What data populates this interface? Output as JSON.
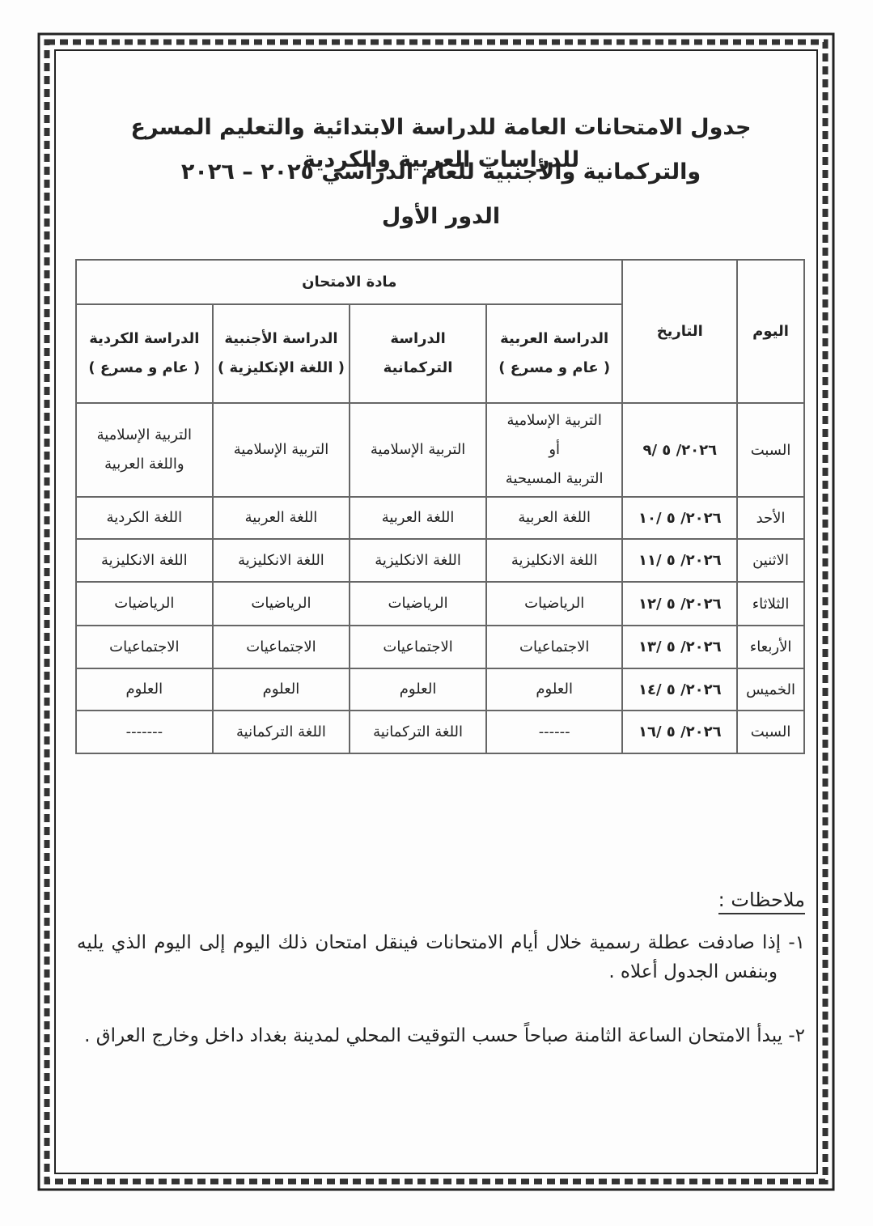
{
  "header": {
    "title_lines": [
      "جدول الامتحانات العامة للدراسة الابتدائية والتعليم المسرع للدراسات العربية والكردية",
      "والتركمانية والأجنبية للعام الدراسي ٢٠٢٥ – ٢٠٢٦",
      "الدور الأول"
    ]
  },
  "table": {
    "day_header": "اليوم",
    "date_header": "التاريخ",
    "subject_header": "مادة الامتحان",
    "columns": [
      [
        "الدراسة العربية",
        "( عام و مسرع )"
      ],
      [
        "الدراسة التركمانية"
      ],
      [
        "الدراسة الأجنبية",
        "( اللغة الإنكليزية )"
      ],
      [
        "الدراسة الكردية",
        "( عام و مسرع )"
      ]
    ],
    "rows": [
      {
        "day": "السبت",
        "date": "٢٠٢٦/ ٥ /٩",
        "cells": [
          [
            "التربية الإسلامية",
            "أو",
            "التربية المسيحية"
          ],
          [
            "التربية الإسلامية"
          ],
          [
            "التربية الإسلامية"
          ],
          [
            "التربية الإسلامية",
            "واللغة العربية"
          ]
        ]
      },
      {
        "day": "الأحد",
        "date": "٢٠٢٦/ ٥ /١٠",
        "cells": [
          [
            "اللغة العربية"
          ],
          [
            "اللغة العربية"
          ],
          [
            "اللغة العربية"
          ],
          [
            "اللغة الكردية"
          ]
        ]
      },
      {
        "day": "الاثنين",
        "date": "٢٠٢٦/ ٥ /١١",
        "cells": [
          [
            "اللغة الانكليزية"
          ],
          [
            "اللغة الانكليزية"
          ],
          [
            "اللغة الانكليزية"
          ],
          [
            "اللغة الانكليزية"
          ]
        ]
      },
      {
        "day": "الثلاثاء",
        "date": "٢٠٢٦/ ٥ /١٢",
        "cells": [
          [
            "الرياضيات"
          ],
          [
            "الرياضيات"
          ],
          [
            "الرياضيات"
          ],
          [
            "الرياضيات"
          ]
        ]
      },
      {
        "day": "الأربعاء",
        "date": "٢٠٢٦/ ٥ /١٣",
        "cells": [
          [
            "الاجتماعيات"
          ],
          [
            "الاجتماعيات"
          ],
          [
            "الاجتماعيات"
          ],
          [
            "الاجتماعيات"
          ]
        ]
      },
      {
        "day": "الخميس",
        "date": "٢٠٢٦/ ٥ /١٤",
        "cells": [
          [
            "العلوم"
          ],
          [
            "العلوم"
          ],
          [
            "العلوم"
          ],
          [
            "العلوم"
          ]
        ]
      },
      {
        "day": "السبت",
        "date": "٢٠٢٦/ ٥ /١٦",
        "cells": [
          [
            "------"
          ],
          [
            "اللغة التركمانية"
          ],
          [
            "اللغة التركمانية"
          ],
          [
            "-------"
          ]
        ]
      }
    ]
  },
  "notes": {
    "label": "ملاحظات :",
    "items": [
      "١- إذا صادفت عطلة رسمية خلال أيام الامتحانات فينقل امتحان ذلك اليوم إلى اليوم الذي يليه وبنفس الجدول أعلاه .",
      "٢- يبدأ الامتحان الساعة الثامنة صباحاً حسب التوقيت المحلي لمدينة بغداد داخل وخارج العراق ."
    ]
  }
}
